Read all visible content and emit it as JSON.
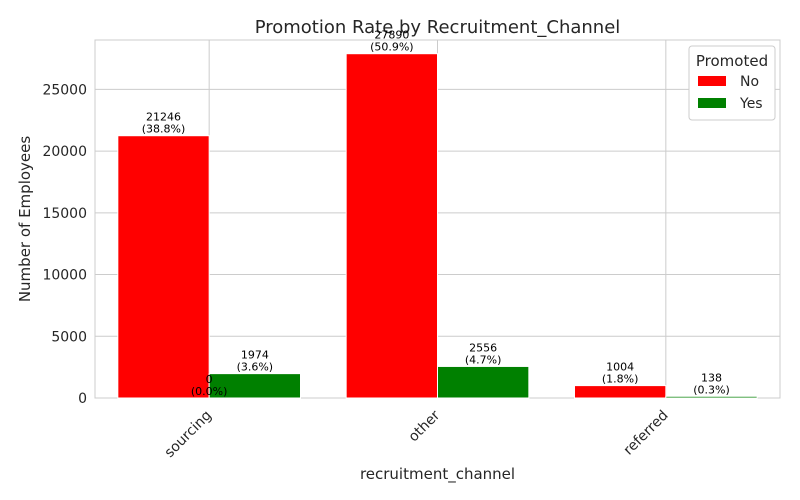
{
  "chart_data": {
    "type": "bar",
    "title": "Promotion Rate by Recruitment_Channel",
    "xlabel": "recruitment_channel",
    "ylabel": "Number of Employees",
    "categories": [
      "sourcing",
      "other",
      "referred"
    ],
    "ylim": [
      0,
      29000
    ],
    "yticks": [
      0,
      5000,
      10000,
      15000,
      20000,
      25000
    ],
    "grid": true,
    "legend": {
      "title": "Promoted",
      "placement": "top-right"
    },
    "series": [
      {
        "name": "No",
        "color": "#ff0000",
        "values": [
          21246,
          27890,
          1004
        ],
        "labels": [
          [
            "21246",
            "(38.8%)"
          ],
          [
            "27890",
            "(50.9%)"
          ],
          [
            "1004",
            "(1.8%)"
          ]
        ]
      },
      {
        "name": "Yes",
        "color": "#008000",
        "values": [
          1974,
          2556,
          138
        ],
        "labels": [
          [
            "1974",
            "(3.6%)"
          ],
          [
            "2556",
            "(4.7%)"
          ],
          [
            "138",
            "(0.3%)"
          ]
        ]
      }
    ],
    "extra_labels": [
      {
        "category": "sourcing",
        "lines": [
          "0",
          "(0.0%)"
        ]
      }
    ]
  }
}
